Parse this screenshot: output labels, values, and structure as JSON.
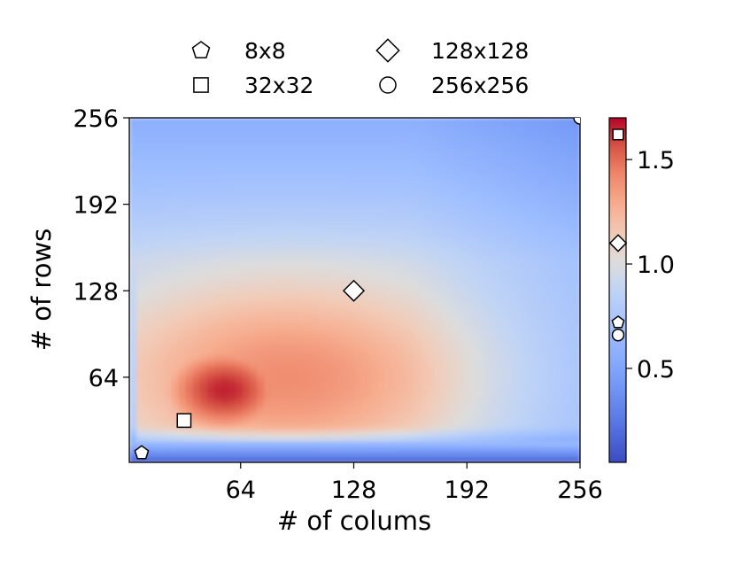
{
  "chart_data": {
    "type": "heatmap",
    "xlabel": "# of colums",
    "ylabel": "# of rows",
    "xlim": [
      1,
      256
    ],
    "ylim": [
      1,
      256
    ],
    "xticks": [
      64,
      128,
      192,
      256
    ],
    "yticks": [
      64,
      128,
      192,
      256
    ],
    "colorbar": {
      "range": [
        0.05,
        1.7
      ],
      "ticks": [
        0.5,
        1.0,
        1.5
      ],
      "colormap": "coolwarm"
    },
    "legend": {
      "placement": "top",
      "entries": [
        {
          "label": "8x8",
          "marker": "pentagon"
        },
        {
          "label": "32x32",
          "marker": "square"
        },
        {
          "label": "128x128",
          "marker": "diamond"
        },
        {
          "label": "256x256",
          "marker": "circle"
        }
      ]
    },
    "points": [
      {
        "label": "8x8",
        "marker": "pentagon",
        "x": 8,
        "y": 8,
        "value": 0.72
      },
      {
        "label": "32x32",
        "marker": "square",
        "x": 32,
        "y": 32,
        "value": 1.62
      },
      {
        "label": "128x128",
        "marker": "diamond",
        "x": 128,
        "y": 128,
        "value": 1.1
      },
      {
        "label": "256x256",
        "marker": "circle",
        "x": 256,
        "y": 256,
        "value": 0.66
      }
    ],
    "colors": {
      "low": "#3b4cc0",
      "mid": "#dddddd",
      "high": "#b40426"
    }
  }
}
